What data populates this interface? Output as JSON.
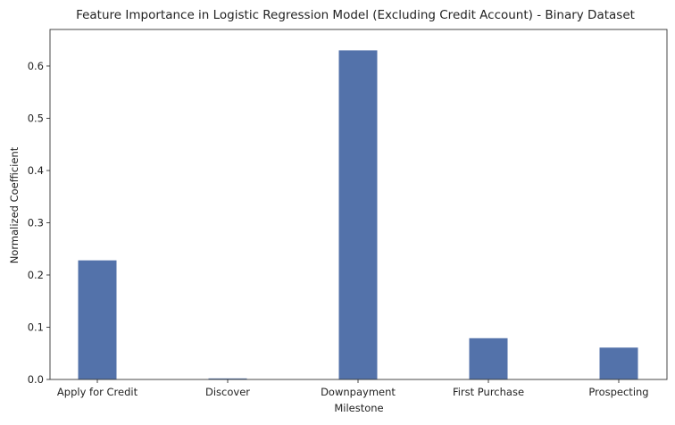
{
  "chart_data": {
    "type": "bar",
    "title": "Feature Importance in Logistic Regression Model (Excluding Credit Account)  - Binary Dataset",
    "xlabel": "Milestone",
    "ylabel": "Normalized Coefficient",
    "categories": [
      "Apply for Credit",
      "Discover",
      "Downpayment",
      "First Purchase",
      "Prospecting"
    ],
    "values": [
      0.228,
      0.002,
      0.63,
      0.079,
      0.061
    ],
    "ylim": [
      0,
      0.67
    ],
    "yticks": [
      0.0,
      0.1,
      0.2,
      0.3,
      0.4,
      0.5,
      0.6
    ],
    "ytick_labels": [
      "0.0",
      "0.1",
      "0.2",
      "0.3",
      "0.4",
      "0.5",
      "0.6"
    ],
    "grid": false,
    "legend": "none",
    "bar_color": "#5372aa"
  }
}
